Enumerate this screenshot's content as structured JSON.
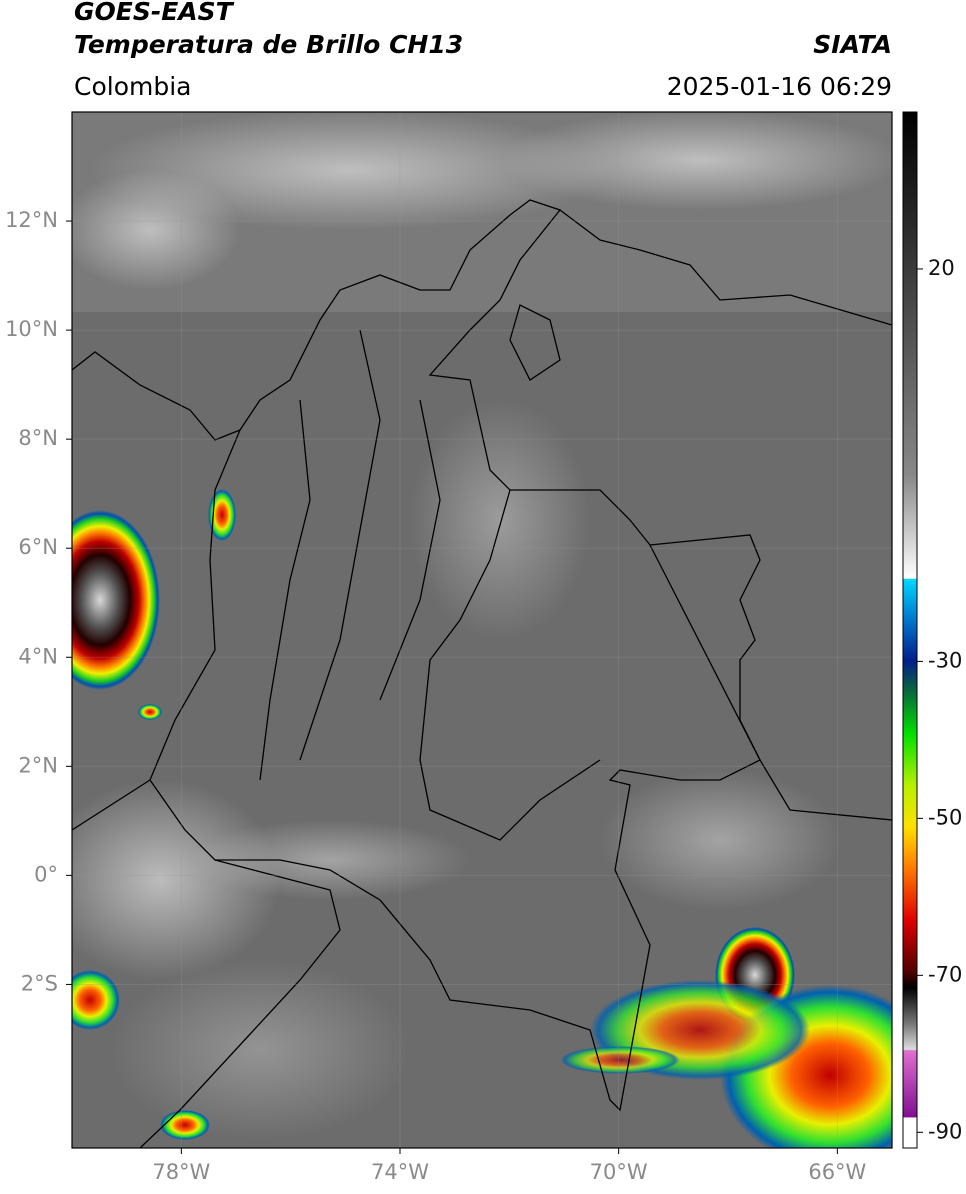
{
  "chart_data": {
    "type": "map",
    "title": "GOES-EAST",
    "subtitle": "Temperatura de Brillo CH13",
    "source": "SIATA",
    "region": "Colombia",
    "datetime": "2025-01-16 06:29",
    "xlim": [
      -80,
      -65
    ],
    "ylim": [
      -5,
      14
    ],
    "xticks": [
      {
        "value": -78,
        "label": "78°W"
      },
      {
        "value": -74,
        "label": "74°W"
      },
      {
        "value": -70,
        "label": "70°W"
      },
      {
        "value": -66,
        "label": "66°W"
      }
    ],
    "yticks": [
      {
        "value": 12,
        "label": "12°N"
      },
      {
        "value": 10,
        "label": "10°N"
      },
      {
        "value": 8,
        "label": "8°N"
      },
      {
        "value": 6,
        "label": "6°N"
      },
      {
        "value": 4,
        "label": "4°N"
      },
      {
        "value": 2,
        "label": "2°N"
      },
      {
        "value": 0,
        "label": "0°"
      },
      {
        "value": -2,
        "label": "2°S"
      }
    ],
    "grid": true,
    "clim": [
      -92,
      40
    ],
    "cticks": [
      20,
      -30,
      -50,
      -70,
      -90
    ]
  }
}
